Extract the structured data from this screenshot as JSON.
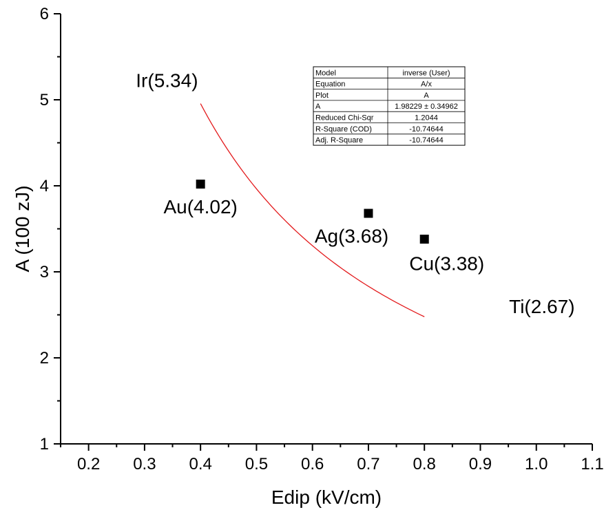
{
  "chart_data": {
    "type": "scatter",
    "xlabel": "Edip (kV/cm)",
    "ylabel": "A (100 zJ)",
    "xlim": [
      0.15,
      1.1
    ],
    "ylim": [
      1,
      6
    ],
    "x_ticks": [
      "0.2",
      "0.3",
      "0.4",
      "0.5",
      "0.6",
      "0.7",
      "0.8",
      "0.9",
      "1.0",
      "1.1"
    ],
    "x_tick_values": [
      0.2,
      0.3,
      0.4,
      0.5,
      0.6,
      0.7,
      0.8,
      0.9,
      1.0,
      1.1
    ],
    "y_ticks": [
      "1",
      "2",
      "3",
      "4",
      "5",
      "6"
    ],
    "y_tick_values": [
      1,
      2,
      3,
      4,
      5,
      6
    ],
    "grid": false,
    "series": [
      {
        "type": "scatter",
        "marker": "square",
        "color": "#000000",
        "points": [
          {
            "x": 0.4,
            "y": 4.02
          },
          {
            "x": 0.7,
            "y": 3.68
          },
          {
            "x": 0.8,
            "y": 3.38
          }
        ]
      },
      {
        "type": "line",
        "color": "#e31a1c",
        "function": "A/x",
        "A": 1.98229,
        "x_start": 0.4,
        "x_end": 0.8
      }
    ],
    "annotations": [
      {
        "text": "Ir(5.34)",
        "x": 0.34,
        "y": 5.23
      },
      {
        "text": "Au(4.02)",
        "x": 0.4,
        "y": 3.76
      },
      {
        "text": "Ag(3.68)",
        "x": 0.67,
        "y": 3.42
      },
      {
        "text": "Cu(3.38)",
        "x": 0.84,
        "y": 3.1
      },
      {
        "text": "Ti(2.67)",
        "x": 1.01,
        "y": 2.6
      }
    ],
    "fit_table": [
      [
        "Model",
        "inverse (User)"
      ],
      [
        "Equation",
        "A/x"
      ],
      [
        "Plot",
        "A"
      ],
      [
        "A",
        "1.98229 ± 0.34962"
      ],
      [
        "Reduced Chi-Sqr",
        "1.2044"
      ],
      [
        "R-Square (COD)",
        "-10.74644"
      ],
      [
        "Adj. R-Square",
        "-10.74644"
      ]
    ]
  }
}
